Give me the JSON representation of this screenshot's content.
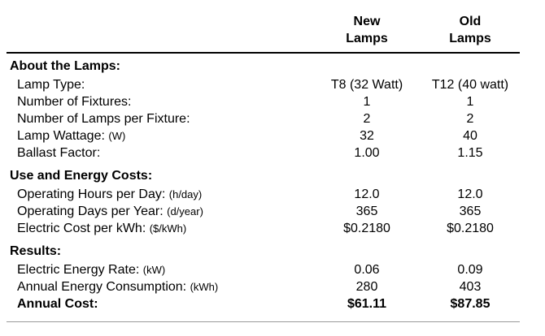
{
  "header": {
    "new_line1": "New",
    "new_line2": "Lamps",
    "old_line1": "Old",
    "old_line2": "Lamps"
  },
  "sections": {
    "lamps": {
      "title": "About the Lamps:",
      "rows": [
        {
          "label": "Lamp Type:",
          "unit": "",
          "new": "T8 (32 Watt)",
          "old": "T12 (40 watt)"
        },
        {
          "label": "Number of Fixtures:",
          "unit": "",
          "new": "1",
          "old": "1"
        },
        {
          "label": "Number of Lamps per Fixture:",
          "unit": "",
          "new": "2",
          "old": "2"
        },
        {
          "label": "Lamp Wattage:",
          "unit": "(W)",
          "new": "32",
          "old": "40"
        },
        {
          "label": "Ballast Factor:",
          "unit": "",
          "new": "1.00",
          "old": "1.15"
        }
      ]
    },
    "energy": {
      "title": "Use and Energy Costs:",
      "rows": [
        {
          "label": "Operating Hours per Day:",
          "unit": "(h/day)",
          "new": "12.0",
          "old": "12.0"
        },
        {
          "label": "Operating Days per Year:",
          "unit": "(d/year)",
          "new": "365",
          "old": "365"
        },
        {
          "label": "Electric Cost per kWh:",
          "unit": "($/kWh)",
          "new": "$0.2180",
          "old": "$0.2180"
        }
      ]
    },
    "results": {
      "title": "Results:",
      "rows": [
        {
          "label": "Electric Energy Rate:",
          "unit": "(kW)",
          "new": "0.06",
          "old": "0.09"
        },
        {
          "label": "Annual Energy Consumption:",
          "unit": "(kWh)",
          "new": "280",
          "old": "403"
        },
        {
          "label": "Annual Cost:",
          "unit": "",
          "new": "$61.11",
          "old": "$87.85"
        }
      ]
    }
  }
}
